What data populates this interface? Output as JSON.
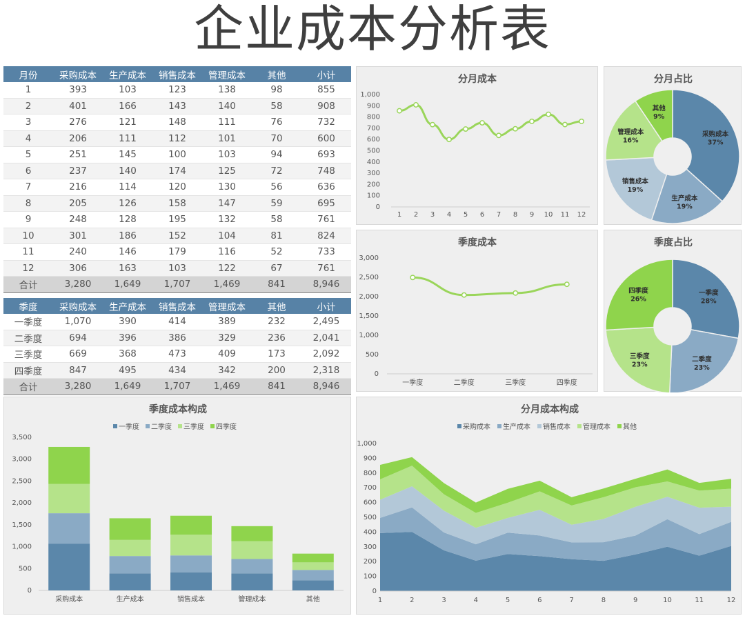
{
  "title": "企业成本分析表",
  "monthly_table": {
    "headers": [
      "月份",
      "采购成本",
      "生产成本",
      "销售成本",
      "管理成本",
      "其他",
      "小计"
    ],
    "rows": [
      [
        "1",
        "393",
        "103",
        "123",
        "138",
        "98",
        "855"
      ],
      [
        "2",
        "401",
        "166",
        "143",
        "140",
        "58",
        "908"
      ],
      [
        "3",
        "276",
        "121",
        "148",
        "111",
        "76",
        "732"
      ],
      [
        "4",
        "206",
        "111",
        "112",
        "101",
        "70",
        "600"
      ],
      [
        "5",
        "251",
        "145",
        "100",
        "103",
        "94",
        "693"
      ],
      [
        "6",
        "237",
        "140",
        "174",
        "125",
        "72",
        "748"
      ],
      [
        "7",
        "216",
        "114",
        "120",
        "130",
        "56",
        "636"
      ],
      [
        "8",
        "205",
        "126",
        "158",
        "147",
        "59",
        "695"
      ],
      [
        "9",
        "248",
        "128",
        "195",
        "132",
        "58",
        "761"
      ],
      [
        "10",
        "301",
        "186",
        "152",
        "104",
        "81",
        "824"
      ],
      [
        "11",
        "240",
        "146",
        "179",
        "116",
        "52",
        "733"
      ],
      [
        "12",
        "306",
        "163",
        "103",
        "122",
        "67",
        "761"
      ]
    ],
    "total": [
      "合计",
      "3,280",
      "1,649",
      "1,707",
      "1,469",
      "841",
      "8,946"
    ]
  },
  "quarter_table": {
    "headers": [
      "季度",
      "采购成本",
      "生产成本",
      "销售成本",
      "管理成本",
      "其他",
      "小计"
    ],
    "rows": [
      [
        "一季度",
        "1,070",
        "390",
        "414",
        "389",
        "232",
        "2,495"
      ],
      [
        "二季度",
        "694",
        "396",
        "386",
        "329",
        "236",
        "2,041"
      ],
      [
        "三季度",
        "669",
        "368",
        "473",
        "409",
        "173",
        "2,092"
      ],
      [
        "四季度",
        "847",
        "495",
        "434",
        "342",
        "200",
        "2,318"
      ]
    ],
    "total": [
      "合计",
      "3,280",
      "1,649",
      "1,707",
      "1,469",
      "841",
      "8,946"
    ]
  },
  "colors": {
    "blue": "#5b87aa",
    "steel": "#8aaac5",
    "lightblue": "#b3c8d8",
    "lightgreen": "#b5e38a",
    "green": "#8fd44c",
    "line": "#9ad55a"
  },
  "chart_data": [
    {
      "id": "monthly-line",
      "type": "line",
      "title": "分月成本",
      "x": [
        "1",
        "2",
        "3",
        "4",
        "5",
        "6",
        "7",
        "8",
        "9",
        "10",
        "11",
        "12"
      ],
      "values": [
        855,
        908,
        732,
        600,
        693,
        748,
        636,
        695,
        761,
        824,
        733,
        761
      ],
      "ylim": [
        0,
        1000
      ],
      "yticks": [
        "0",
        "100",
        "200",
        "300",
        "400",
        "500",
        "600",
        "700",
        "800",
        "900",
        "1,000"
      ]
    },
    {
      "id": "monthly-pie",
      "type": "pie",
      "title": "分月占比",
      "labels": [
        "采购成本",
        "生产成本",
        "销售成本",
        "管理成本",
        "其他"
      ],
      "values": [
        3280,
        1649,
        1707,
        1469,
        841
      ],
      "percent_labels": [
        "37%",
        "19%",
        "19%",
        "16%",
        "9%"
      ]
    },
    {
      "id": "quarter-line",
      "type": "line",
      "title": "季度成本",
      "x": [
        "一季度",
        "二季度",
        "三季度",
        "四季度"
      ],
      "values": [
        2495,
        2041,
        2092,
        2318
      ],
      "ylim": [
        0,
        3000
      ],
      "yticks": [
        "0",
        "500",
        "1,000",
        "1,500",
        "2,000",
        "2,500",
        "3,000"
      ]
    },
    {
      "id": "quarter-pie",
      "type": "pie",
      "title": "季度占比",
      "labels": [
        "一季度",
        "二季度",
        "三季度",
        "四季度"
      ],
      "values": [
        2495,
        2041,
        2092,
        2318
      ],
      "percent_labels": [
        "28%",
        "23%",
        "23%",
        "26%"
      ]
    },
    {
      "id": "quarter-stack",
      "type": "bar",
      "title": "季度成本构成",
      "categories": [
        "采购成本",
        "生产成本",
        "销售成本",
        "管理成本",
        "其他"
      ],
      "series": [
        {
          "name": "一季度",
          "values": [
            1070,
            390,
            414,
            389,
            232
          ]
        },
        {
          "name": "二季度",
          "values": [
            694,
            396,
            386,
            329,
            236
          ]
        },
        {
          "name": "三季度",
          "values": [
            669,
            368,
            473,
            409,
            173
          ]
        },
        {
          "name": "四季度",
          "values": [
            847,
            495,
            434,
            342,
            200
          ]
        }
      ],
      "ylim": [
        0,
        3500
      ],
      "yticks": [
        "0",
        "500",
        "1,000",
        "1,500",
        "2,000",
        "2,500",
        "3,000",
        "3,500"
      ]
    },
    {
      "id": "monthly-area",
      "type": "area",
      "title": "分月成本构成",
      "x": [
        "1",
        "2",
        "3",
        "4",
        "5",
        "6",
        "7",
        "8",
        "9",
        "10",
        "11",
        "12"
      ],
      "series": [
        {
          "name": "采购成本",
          "values": [
            393,
            401,
            276,
            206,
            251,
            237,
            216,
            205,
            248,
            301,
            240,
            306
          ]
        },
        {
          "name": "生产成本",
          "values": [
            103,
            166,
            121,
            111,
            145,
            140,
            114,
            126,
            128,
            186,
            146,
            163
          ]
        },
        {
          "name": "销售成本",
          "values": [
            123,
            143,
            148,
            112,
            100,
            174,
            120,
            158,
            195,
            152,
            179,
            103
          ]
        },
        {
          "name": "管理成本",
          "values": [
            138,
            140,
            111,
            101,
            103,
            125,
            130,
            147,
            132,
            104,
            116,
            122
          ]
        },
        {
          "name": "其他",
          "values": [
            98,
            58,
            76,
            70,
            94,
            72,
            56,
            59,
            58,
            81,
            52,
            67
          ]
        }
      ],
      "ylim": [
        0,
        1000
      ],
      "yticks": [
        "0",
        "100",
        "200",
        "300",
        "400",
        "500",
        "600",
        "700",
        "800",
        "900",
        "1,000"
      ]
    }
  ]
}
